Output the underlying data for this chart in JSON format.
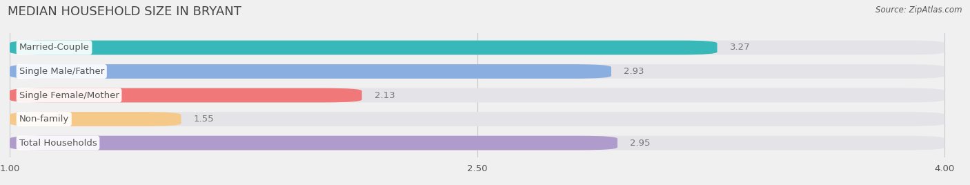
{
  "title": "MEDIAN HOUSEHOLD SIZE IN BRYANT",
  "source": "Source: ZipAtlas.com",
  "categories": [
    "Married-Couple",
    "Single Male/Father",
    "Single Female/Mother",
    "Non-family",
    "Total Households"
  ],
  "values": [
    3.27,
    2.93,
    2.13,
    1.55,
    2.95
  ],
  "bar_colors": [
    "#38b8b8",
    "#8aaee0",
    "#f07878",
    "#f5c98a",
    "#b09ccc"
  ],
  "xmin": 1.0,
  "xmax": 4.0,
  "xticks": [
    1.0,
    2.5,
    4.0
  ],
  "background_color": "#f0f0f0",
  "bar_bg_color": "#e4e4e8",
  "label_color": "#555555",
  "value_color_inside": "#ffffff",
  "value_color_outside": "#777777",
  "title_color": "#444444",
  "title_fontsize": 13,
  "label_fontsize": 9.5,
  "value_fontsize": 9.5,
  "source_fontsize": 8.5
}
